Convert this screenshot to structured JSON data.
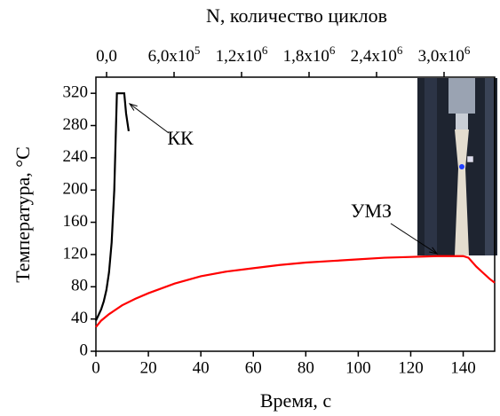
{
  "chart_data": {
    "type": "line",
    "xlabel": "Время, с",
    "ylabel": "Температура, °С",
    "x2label": "N, количество циклов",
    "xlim": [
      0,
      152
    ],
    "ylim": [
      0,
      340
    ],
    "xticks": [
      0,
      20,
      40,
      60,
      80,
      100,
      120,
      140
    ],
    "yticks": [
      0,
      40,
      80,
      120,
      160,
      200,
      240,
      280,
      320
    ],
    "x2lim": [
      -94737,
      3450000
    ],
    "x2ticks": [
      {
        "value": 0,
        "label": "0,0"
      },
      {
        "value": 600000,
        "label": "6,0x10",
        "exponent": "5"
      },
      {
        "value": 1200000,
        "label": "1,2x10",
        "exponent": "6"
      },
      {
        "value": 1800000,
        "label": "1,8x10",
        "exponent": "6"
      },
      {
        "value": 2400000,
        "label": "2,4x10",
        "exponent": "6"
      },
      {
        "value": 3000000,
        "label": "3,0x10",
        "exponent": "6"
      }
    ],
    "series": [
      {
        "name": "КК",
        "color": "#000000",
        "x": [
          0,
          1,
          2,
          3,
          4,
          5,
          6,
          7,
          7.5,
          8,
          9,
          10,
          10.8,
          11.5,
          12.5
        ],
        "values": [
          38,
          45,
          52,
          62,
          76,
          98,
          135,
          200,
          260,
          320,
          320,
          320,
          320,
          295,
          273
        ]
      },
      {
        "name": "УМЗ",
        "color": "#ff0000",
        "x": [
          0,
          2,
          5,
          10,
          15,
          20,
          30,
          40,
          50,
          60,
          70,
          80,
          90,
          100,
          110,
          120,
          130,
          140,
          142,
          145,
          148,
          150,
          152
        ],
        "values": [
          30,
          38,
          46,
          57,
          65,
          72,
          84,
          93,
          99,
          103,
          107,
          110,
          112,
          114,
          116,
          117,
          118,
          118,
          116,
          105,
          96,
          90,
          85
        ]
      }
    ]
  }
}
